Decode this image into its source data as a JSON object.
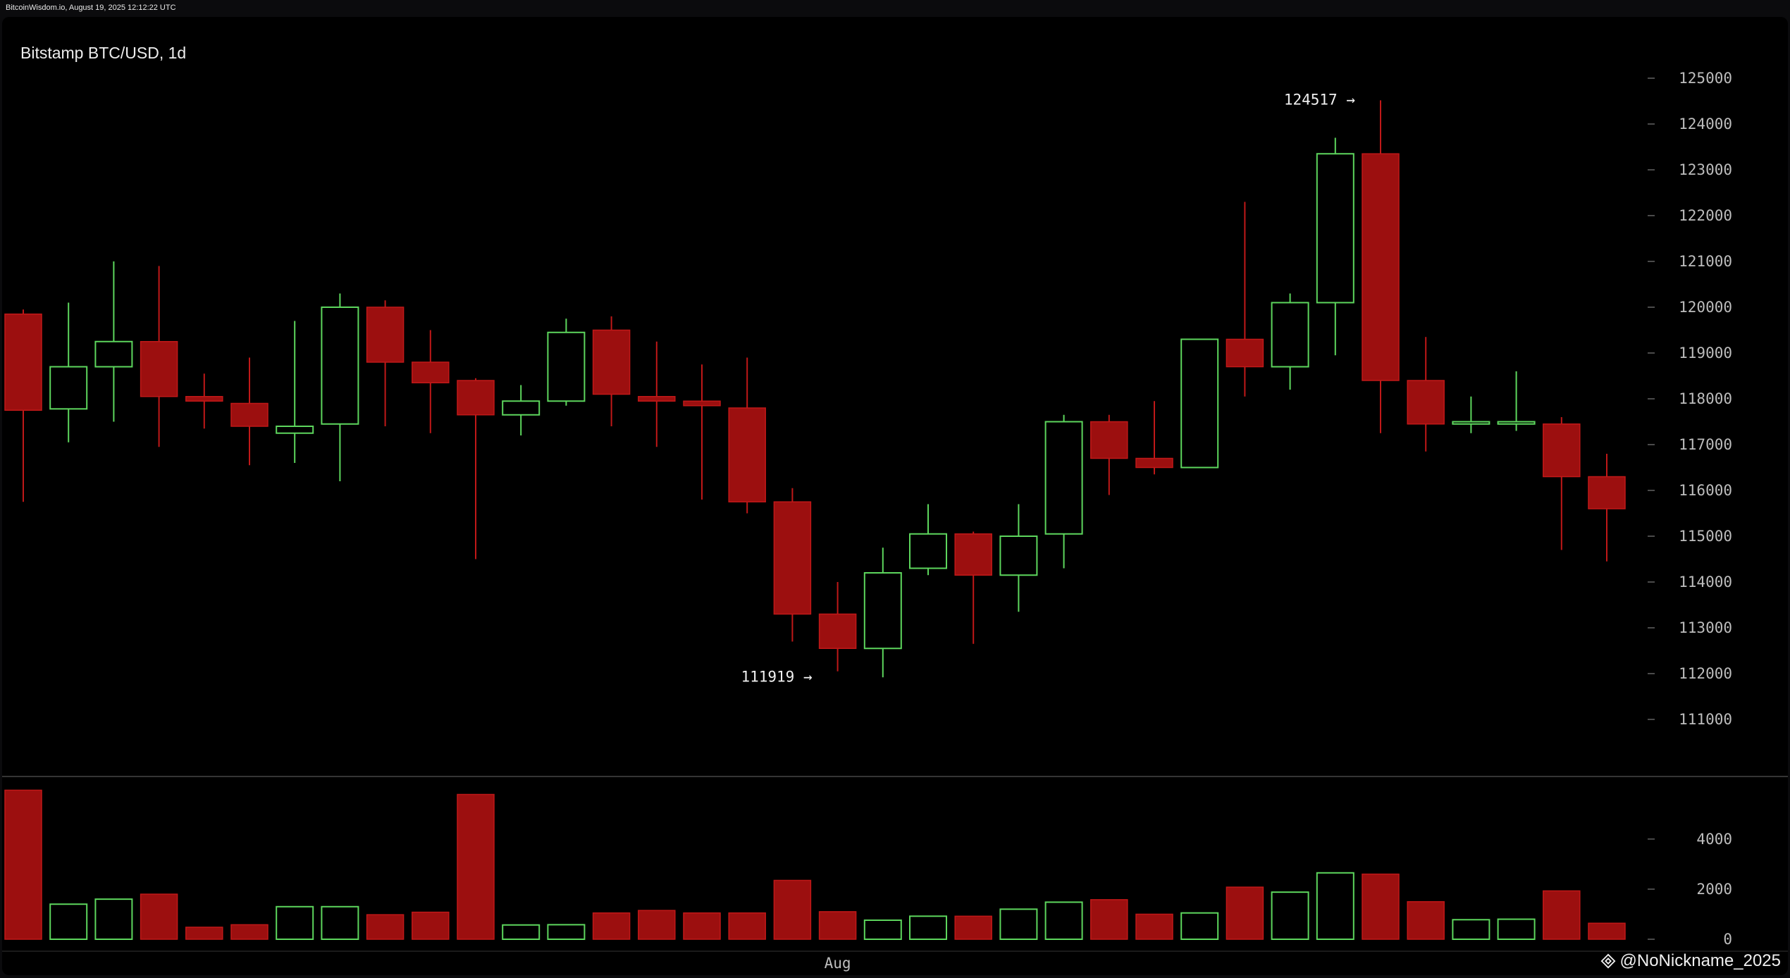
{
  "header": {
    "source_text": "BitcoinWisdom.io, August 19, 2025 12:12:22 UTC"
  },
  "chart_title": "Bitstamp BTC/USD, 1d",
  "watermark": {
    "text": "@NoNickname_2025",
    "icon": "binance-diamond-icon"
  },
  "colors": {
    "up": "#5dd65d",
    "down": "#9c0f0f",
    "down_border": "#c01818",
    "background": "#000000",
    "grid_tick": "#4a4a4a",
    "axis_text": "#bdbdbd"
  },
  "chart_data": [
    {
      "type": "candlestick",
      "title": "Bitstamp BTC/USD, 1d",
      "ylim": [
        110400,
        125600
      ],
      "yticks": [
        111000,
        112000,
        113000,
        114000,
        115000,
        116000,
        117000,
        118000,
        119000,
        120000,
        121000,
        122000,
        123000,
        124000,
        125000
      ],
      "xtick_labels": [
        {
          "index": 18,
          "label": "Aug"
        }
      ],
      "annotations": [
        {
          "text": "124517 →",
          "candle_index": 30,
          "value": 124517
        },
        {
          "text": "111919 →",
          "candle_index": 18,
          "value": 111919
        }
      ],
      "candles": [
        {
          "o": 119850,
          "h": 119950,
          "l": 115750,
          "c": 117750
        },
        {
          "o": 117780,
          "h": 120100,
          "l": 117050,
          "c": 118700
        },
        {
          "o": 118700,
          "h": 121000,
          "l": 117500,
          "c": 119250
        },
        {
          "o": 119250,
          "h": 120900,
          "l": 116950,
          "c": 118050
        },
        {
          "o": 118050,
          "h": 118550,
          "l": 117350,
          "c": 117950
        },
        {
          "o": 117900,
          "h": 118900,
          "l": 116550,
          "c": 117400
        },
        {
          "o": 117250,
          "h": 119700,
          "l": 116600,
          "c": 117400
        },
        {
          "o": 117450,
          "h": 120300,
          "l": 116200,
          "c": 120000
        },
        {
          "o": 120000,
          "h": 120150,
          "l": 117400,
          "c": 118800
        },
        {
          "o": 118800,
          "h": 119500,
          "l": 117250,
          "c": 118350
        },
        {
          "o": 118400,
          "h": 118450,
          "l": 114500,
          "c": 117650
        },
        {
          "o": 117650,
          "h": 118300,
          "l": 117200,
          "c": 117950
        },
        {
          "o": 117950,
          "h": 119750,
          "l": 117850,
          "c": 119450
        },
        {
          "o": 119500,
          "h": 119800,
          "l": 117400,
          "c": 118100
        },
        {
          "o": 118050,
          "h": 119250,
          "l": 116950,
          "c": 117950
        },
        {
          "o": 117950,
          "h": 118750,
          "l": 115800,
          "c": 117850
        },
        {
          "o": 117800,
          "h": 118900,
          "l": 115500,
          "c": 115750
        },
        {
          "o": 115750,
          "h": 116050,
          "l": 112700,
          "c": 113300
        },
        {
          "o": 113300,
          "h": 114000,
          "l": 112050,
          "c": 112550
        },
        {
          "o": 112550,
          "h": 114750,
          "l": 111919,
          "c": 114200
        },
        {
          "o": 114300,
          "h": 115700,
          "l": 114150,
          "c": 115050
        },
        {
          "o": 115050,
          "h": 115100,
          "l": 112650,
          "c": 114150
        },
        {
          "o": 114150,
          "h": 115700,
          "l": 113350,
          "c": 115000
        },
        {
          "o": 115050,
          "h": 117650,
          "l": 114300,
          "c": 117500
        },
        {
          "o": 117500,
          "h": 117650,
          "l": 115900,
          "c": 116700
        },
        {
          "o": 116700,
          "h": 117950,
          "l": 116350,
          "c": 116500
        },
        {
          "o": 116500,
          "h": 119300,
          "l": 116500,
          "c": 119300
        },
        {
          "o": 119300,
          "h": 122300,
          "l": 118050,
          "c": 118700
        },
        {
          "o": 118700,
          "h": 120300,
          "l": 118200,
          "c": 120100
        },
        {
          "o": 120100,
          "h": 123700,
          "l": 118950,
          "c": 123350
        },
        {
          "o": 123350,
          "h": 124517,
          "l": 117250,
          "c": 118400
        },
        {
          "o": 118400,
          "h": 119350,
          "l": 116850,
          "c": 117450
        },
        {
          "o": 117450,
          "h": 118050,
          "l": 117250,
          "c": 117500
        },
        {
          "o": 117450,
          "h": 118600,
          "l": 117300,
          "c": 117500
        },
        {
          "o": 117450,
          "h": 117600,
          "l": 114700,
          "c": 116300
        },
        {
          "o": 116300,
          "h": 116800,
          "l": 114450,
          "c": 115600
        }
      ]
    },
    {
      "type": "bar",
      "title": "",
      "ylim": [
        0,
        6300
      ],
      "yticks": [
        0,
        2000,
        4000
      ],
      "values": [
        5950,
        1400,
        1600,
        1800,
        480,
        580,
        1300,
        1300,
        980,
        1080,
        5780,
        570,
        580,
        1050,
        1150,
        1050,
        1050,
        2350,
        1100,
        760,
        920,
        920,
        1200,
        1480,
        1580,
        1000,
        1050,
        2080,
        1880,
        2650,
        2600,
        1500,
        780,
        800,
        1930,
        640
      ]
    }
  ]
}
